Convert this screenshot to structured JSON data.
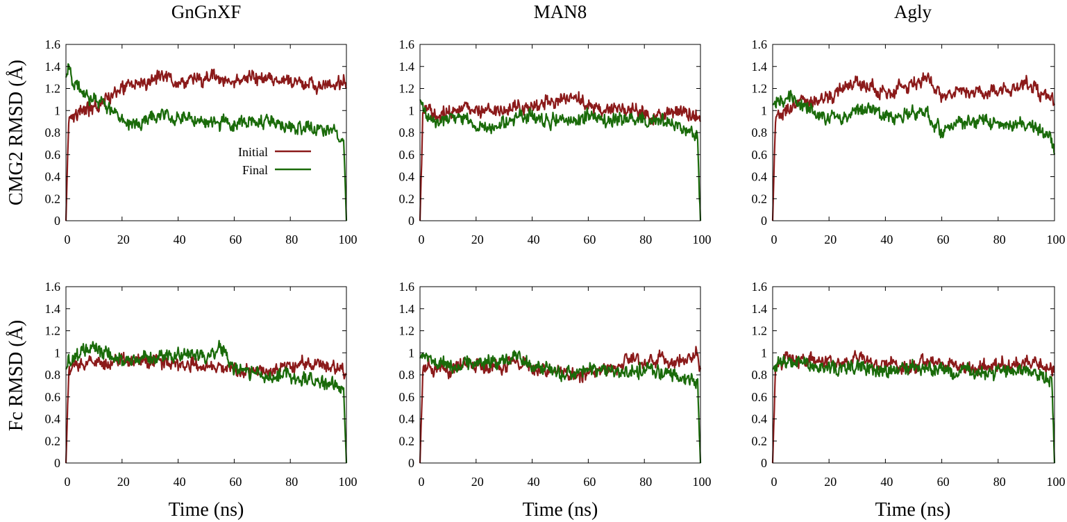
{
  "colors": {
    "initial": "#8b1a1a",
    "final": "#1a6b0a",
    "axis": "#000000"
  },
  "column_titles": [
    "GnGnXF",
    "MAN8",
    "Agly"
  ],
  "row_labels": [
    "CMG2 RMSD (Å)",
    "Fc RMSD (Å)"
  ],
  "xlabel": "Time (ns)",
  "legend": {
    "initial": "Initial",
    "final": "Final"
  },
  "chart_data": [
    {
      "type": "line",
      "column": "GnGnXF",
      "row": "CMG2",
      "xlim": [
        0,
        100
      ],
      "ylim": [
        0,
        1.6
      ],
      "xticks": [
        0,
        20,
        40,
        60,
        80,
        100
      ],
      "yticks": [
        0,
        0.2,
        0.4,
        0.6,
        0.8,
        1,
        1.2,
        1.4,
        1.6
      ],
      "legend_position": "center",
      "x": [
        0,
        1,
        3,
        6,
        10,
        14,
        17,
        20,
        25,
        30,
        34,
        37,
        40,
        45,
        50,
        55,
        60,
        65,
        70,
        75,
        80,
        85,
        90,
        95,
        99,
        100
      ],
      "series": [
        {
          "name": "Initial",
          "values": [
            0,
            0.95,
            0.98,
            1.0,
            1.02,
            1.1,
            1.18,
            1.2,
            1.22,
            1.28,
            1.35,
            1.3,
            1.25,
            1.28,
            1.3,
            1.28,
            1.25,
            1.3,
            1.28,
            1.25,
            1.27,
            1.24,
            1.22,
            1.22,
            1.25,
            1.2
          ]
        },
        {
          "name": "Final",
          "values": [
            1.3,
            1.38,
            1.25,
            1.15,
            1.1,
            1.05,
            1.0,
            0.9,
            0.88,
            0.92,
            0.98,
            0.95,
            0.93,
            0.9,
            0.92,
            0.88,
            0.87,
            0.9,
            0.92,
            0.88,
            0.85,
            0.85,
            0.82,
            0.82,
            0.75,
            0
          ]
        }
      ]
    },
    {
      "type": "line",
      "column": "MAN8",
      "row": "CMG2",
      "xlim": [
        0,
        100
      ],
      "ylim": [
        0,
        1.6
      ],
      "xticks": [
        0,
        20,
        40,
        60,
        80,
        100
      ],
      "yticks": [
        0,
        0.2,
        0.4,
        0.6,
        0.8,
        1,
        1.2,
        1.4,
        1.6
      ],
      "x": [
        0,
        1,
        3,
        6,
        10,
        14,
        17,
        20,
        25,
        30,
        34,
        37,
        40,
        45,
        50,
        55,
        60,
        65,
        70,
        75,
        80,
        85,
        90,
        95,
        99,
        100
      ],
      "series": [
        {
          "name": "Initial",
          "values": [
            0,
            0.95,
            1.0,
            0.97,
            1.0,
            1.02,
            1.03,
            1.0,
            1.02,
            1.0,
            1.03,
            1.05,
            1.05,
            1.08,
            1.1,
            1.12,
            1.05,
            1.0,
            1.02,
            1.0,
            0.98,
            0.95,
            1.0,
            1.0,
            0.95,
            0.9
          ]
        },
        {
          "name": "Final",
          "values": [
            1.1,
            1.05,
            0.92,
            0.9,
            0.95,
            0.92,
            0.9,
            0.85,
            0.87,
            0.88,
            0.92,
            0.95,
            0.95,
            0.9,
            0.93,
            0.92,
            0.95,
            0.9,
            0.92,
            0.92,
            0.9,
            0.9,
            0.88,
            0.85,
            0.75,
            0
          ]
        }
      ]
    },
    {
      "type": "line",
      "column": "Agly",
      "row": "CMG2",
      "xlim": [
        0,
        100
      ],
      "ylim": [
        0,
        1.6
      ],
      "xticks": [
        0,
        20,
        40,
        60,
        80,
        100
      ],
      "yticks": [
        0,
        0.2,
        0.4,
        0.6,
        0.8,
        1,
        1.2,
        1.4,
        1.6
      ],
      "x": [
        0,
        1,
        3,
        6,
        10,
        14,
        17,
        20,
        25,
        30,
        34,
        37,
        40,
        45,
        50,
        55,
        60,
        65,
        70,
        75,
        80,
        85,
        90,
        95,
        99,
        100
      ],
      "series": [
        {
          "name": "Initial",
          "values": [
            0,
            0.92,
            0.97,
            1.0,
            1.05,
            1.08,
            1.1,
            1.12,
            1.2,
            1.25,
            1.22,
            1.18,
            1.15,
            1.2,
            1.25,
            1.28,
            1.15,
            1.18,
            1.2,
            1.15,
            1.18,
            1.2,
            1.25,
            1.15,
            1.1,
            1.05
          ]
        },
        {
          "name": "Final",
          "values": [
            1.05,
            1.08,
            1.1,
            1.12,
            1.05,
            1.0,
            0.95,
            0.92,
            0.95,
            1.0,
            1.02,
            0.98,
            0.95,
            0.92,
            0.98,
            0.95,
            0.8,
            0.88,
            0.9,
            0.92,
            0.88,
            0.88,
            0.9,
            0.82,
            0.72,
            0.6
          ]
        }
      ]
    },
    {
      "type": "line",
      "column": "GnGnXF",
      "row": "Fc",
      "xlim": [
        0,
        100
      ],
      "ylim": [
        0,
        1.6
      ],
      "xticks": [
        0,
        20,
        40,
        60,
        80,
        100
      ],
      "yticks": [
        0,
        0.2,
        0.4,
        0.6,
        0.8,
        1,
        1.2,
        1.4,
        1.6
      ],
      "x": [
        0,
        1,
        3,
        6,
        10,
        14,
        17,
        20,
        25,
        30,
        34,
        37,
        40,
        45,
        50,
        55,
        60,
        65,
        70,
        75,
        80,
        85,
        90,
        95,
        99,
        100
      ],
      "series": [
        {
          "name": "Initial",
          "values": [
            0,
            0.82,
            0.88,
            0.9,
            0.92,
            0.9,
            0.93,
            0.92,
            0.95,
            0.92,
            0.95,
            0.9,
            0.9,
            0.9,
            0.88,
            0.86,
            0.85,
            0.82,
            0.85,
            0.86,
            0.88,
            0.88,
            0.9,
            0.88,
            0.85,
            0.8
          ]
        },
        {
          "name": "Final",
          "values": [
            0.85,
            0.9,
            0.95,
            1.0,
            1.05,
            1.0,
            0.98,
            0.95,
            0.93,
            0.95,
            0.97,
            0.95,
            0.97,
            0.98,
            0.96,
            1.05,
            0.85,
            0.83,
            0.8,
            0.8,
            0.78,
            0.77,
            0.75,
            0.72,
            0.7,
            0
          ]
        }
      ]
    },
    {
      "type": "line",
      "column": "MAN8",
      "row": "Fc",
      "xlim": [
        0,
        100
      ],
      "ylim": [
        0,
        1.6
      ],
      "xticks": [
        0,
        20,
        40,
        60,
        80,
        100
      ],
      "yticks": [
        0,
        0.2,
        0.4,
        0.6,
        0.8,
        1,
        1.2,
        1.4,
        1.6
      ],
      "x": [
        0,
        1,
        3,
        6,
        10,
        14,
        17,
        20,
        25,
        30,
        34,
        37,
        40,
        45,
        50,
        55,
        60,
        65,
        70,
        75,
        80,
        85,
        90,
        95,
        99,
        100
      ],
      "series": [
        {
          "name": "Initial",
          "values": [
            0,
            0.85,
            0.88,
            0.85,
            0.82,
            0.88,
            0.9,
            0.88,
            0.87,
            0.88,
            0.92,
            0.9,
            0.87,
            0.83,
            0.82,
            0.8,
            0.82,
            0.85,
            0.88,
            0.95,
            0.9,
            0.95,
            0.9,
            0.95,
            0.98,
            0.85
          ]
        },
        {
          "name": "Final",
          "values": [
            0.95,
            1.0,
            0.95,
            0.88,
            0.9,
            0.85,
            0.92,
            0.9,
            0.92,
            0.9,
            0.98,
            0.92,
            0.88,
            0.85,
            0.82,
            0.83,
            0.85,
            0.83,
            0.85,
            0.82,
            0.85,
            0.82,
            0.8,
            0.78,
            0.72,
            0
          ]
        }
      ]
    },
    {
      "type": "line",
      "column": "Agly",
      "row": "Fc",
      "xlim": [
        0,
        100
      ],
      "ylim": [
        0,
        1.6
      ],
      "xticks": [
        0,
        20,
        40,
        60,
        80,
        100
      ],
      "yticks": [
        0,
        0.2,
        0.4,
        0.6,
        0.8,
        1,
        1.2,
        1.4,
        1.6
      ],
      "x": [
        0,
        1,
        3,
        6,
        10,
        14,
        17,
        20,
        25,
        30,
        34,
        37,
        40,
        45,
        50,
        55,
        60,
        65,
        70,
        75,
        80,
        85,
        90,
        95,
        99,
        100
      ],
      "series": [
        {
          "name": "Initial",
          "values": [
            0,
            0.85,
            0.9,
            0.95,
            0.93,
            0.95,
            0.92,
            0.95,
            0.9,
            0.95,
            0.92,
            0.88,
            0.9,
            0.88,
            0.87,
            0.9,
            0.92,
            0.88,
            0.87,
            0.9,
            0.9,
            0.88,
            0.9,
            0.9,
            0.85,
            0.82
          ]
        },
        {
          "name": "Final",
          "values": [
            0.85,
            0.88,
            0.92,
            0.95,
            0.9,
            0.88,
            0.85,
            0.87,
            0.85,
            0.88,
            0.85,
            0.83,
            0.85,
            0.82,
            0.85,
            0.83,
            0.85,
            0.82,
            0.85,
            0.83,
            0.82,
            0.85,
            0.82,
            0.8,
            0.75,
            0
          ]
        }
      ]
    }
  ]
}
